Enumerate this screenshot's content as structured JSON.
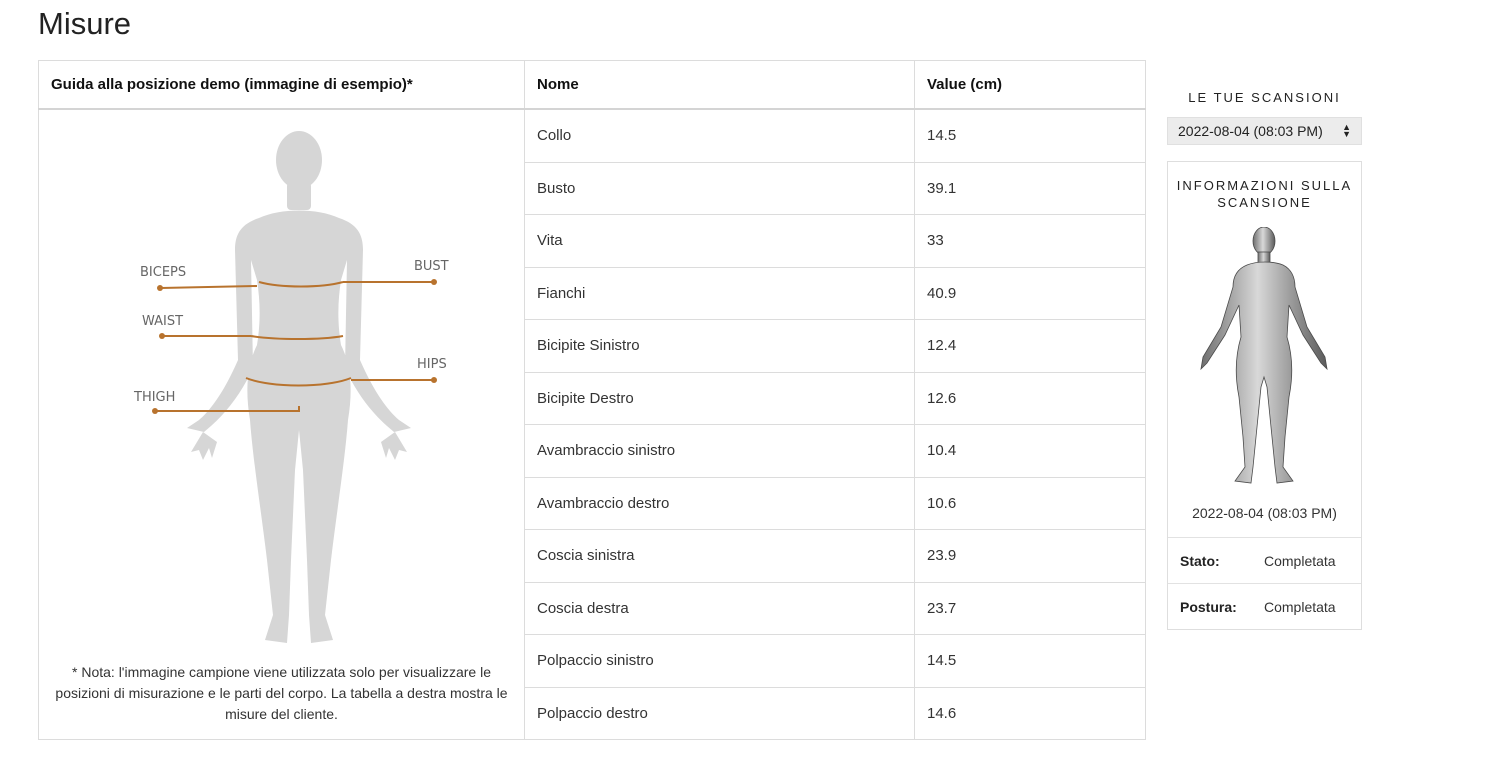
{
  "page": {
    "title": "Misure"
  },
  "table": {
    "headers": {
      "guide": "Guida alla posizione demo (immagine di esempio)*",
      "name": "Nome",
      "value": "Value (cm)"
    },
    "rows": [
      {
        "name": "Collo",
        "value": "14.5"
      },
      {
        "name": "Busto",
        "value": "39.1"
      },
      {
        "name": "Vita",
        "value": "33"
      },
      {
        "name": "Fianchi",
        "value": "40.9"
      },
      {
        "name": "Bicipite Sinistro",
        "value": "12.4"
      },
      {
        "name": "Bicipite Destro",
        "value": "12.6"
      },
      {
        "name": "Avambraccio sinistro",
        "value": "10.4"
      },
      {
        "name": "Avambraccio destro",
        "value": "10.6"
      },
      {
        "name": "Coscia sinistra",
        "value": "23.9"
      },
      {
        "name": "Coscia destra",
        "value": "23.7"
      },
      {
        "name": "Polpaccio sinistro",
        "value": "14.5"
      },
      {
        "name": "Polpaccio destro",
        "value": "14.6"
      }
    ]
  },
  "guide": {
    "labels": {
      "biceps": "BICEPS",
      "bust": "BUST",
      "waist": "WAIST",
      "hips": "HIPS",
      "thigh": "THIGH"
    },
    "note": "* Nota: l'immagine campione viene utilizzata solo per visualizzare le posizioni di misurazione e le parti del corpo. La tabella a destra mostra le misure del cliente.",
    "colors": {
      "silhouette": "#d6d6d6",
      "line": "#b8732e",
      "label": "#666666"
    }
  },
  "side_panel": {
    "heading": "LE TUE SCANSIONI",
    "selected_scan": "2022-08-04 (08:03 PM)",
    "info_title": "INFORMAZIONI SULLA SCANSIONE",
    "scan_date": "2022-08-04 (08:03 PM)",
    "status_label": "Stato:",
    "status_value": "Completata",
    "posture_label": "Postura:",
    "posture_value": "Completata"
  }
}
